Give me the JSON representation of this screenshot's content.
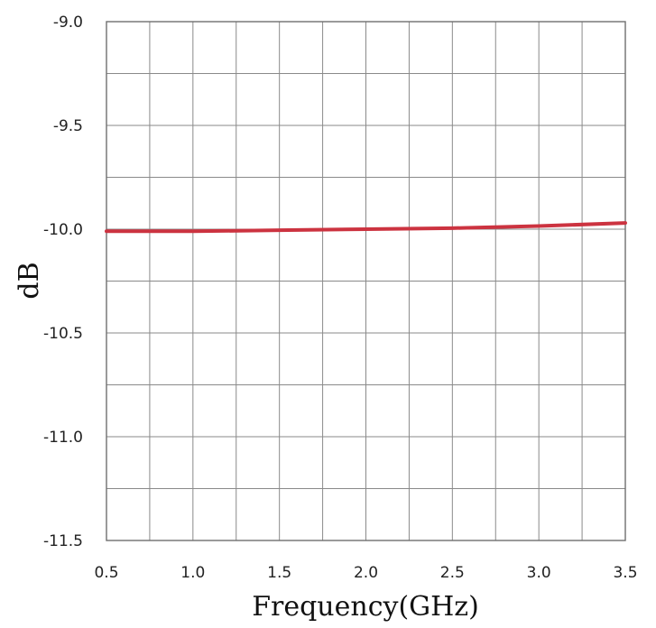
{
  "chart_data": {
    "type": "line",
    "title": "",
    "xlabel": "Frequency(GHz)",
    "ylabel": "dB",
    "xlim": [
      0.5,
      3.5
    ],
    "ylim": [
      -11.5,
      -9.0
    ],
    "x_ticks": [
      0.5,
      0.75,
      1.0,
      1.25,
      1.5,
      1.75,
      2.0,
      2.25,
      2.5,
      2.75,
      3.0,
      3.25,
      3.5
    ],
    "x_tick_labels": [
      "0.5",
      "1.0",
      "1.5",
      "2.0",
      "2.5",
      "3.0",
      "3.5"
    ],
    "y_ticks": [
      -9.0,
      -9.25,
      -9.5,
      -9.75,
      -10.0,
      -10.25,
      -10.5,
      -10.75,
      -11.0,
      -11.25,
      -11.5
    ],
    "y_tick_labels": [
      "-9.0",
      "-9.5",
      "-10.0",
      "-10.5",
      "-11.0",
      "-11.5"
    ],
    "grid": true,
    "legend": "none",
    "series": [
      {
        "color": "#cc3340",
        "x": [
          0.5,
          1.0,
          1.5,
          2.0,
          2.5,
          3.0,
          3.5
        ],
        "y": [
          -10.01,
          -10.01,
          -10.005,
          -10.0,
          -9.995,
          -9.985,
          -9.97
        ]
      }
    ]
  }
}
